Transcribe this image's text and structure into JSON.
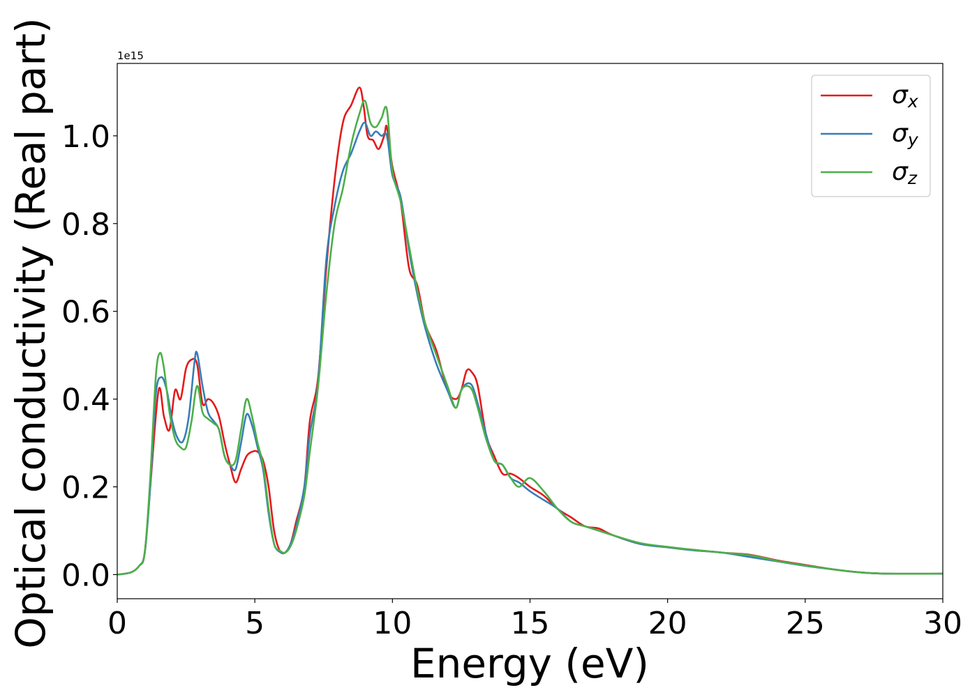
{
  "chart_data": {
    "type": "line",
    "title": "",
    "xlabel": "Energy (eV)",
    "ylabel": "Optical conductivity (Real part)",
    "offset_text": "1e15",
    "xlim": [
      0,
      30
    ],
    "ylim": [
      -0.055,
      1.165
    ],
    "y_scale_factor": 1000000000000000.0,
    "xticks": [
      0,
      5,
      10,
      15,
      20,
      25,
      30
    ],
    "xtick_labels": [
      "0",
      "5",
      "10",
      "15",
      "20",
      "25",
      "30"
    ],
    "yticks": [
      0.0,
      0.2,
      0.4,
      0.6,
      0.8,
      1.0
    ],
    "ytick_labels": [
      "0.0",
      "0.2",
      "0.4",
      "0.6",
      "0.8",
      "1.0"
    ],
    "grid": false,
    "legend_position": "top-right",
    "series": [
      {
        "name": "σx",
        "symbol": "σ",
        "subscript": "x",
        "color": "#e41a1c",
        "x": [
          0,
          0.5,
          0.8,
          1.0,
          1.2,
          1.5,
          1.7,
          1.9,
          2.1,
          2.3,
          2.5,
          2.7,
          2.9,
          3.1,
          3.3,
          3.5,
          3.7,
          3.9,
          4.1,
          4.3,
          4.5,
          4.7,
          4.9,
          5.1,
          5.3,
          5.5,
          5.7,
          5.9,
          6.1,
          6.3,
          6.5,
          6.8,
          7.0,
          7.3,
          7.6,
          7.9,
          8.2,
          8.5,
          8.8,
          8.95,
          9.1,
          9.3,
          9.5,
          9.7,
          9.8,
          10.0,
          10.3,
          10.6,
          10.9,
          11.2,
          11.6,
          12.0,
          12.3,
          12.5,
          12.7,
          12.9,
          13.1,
          13.4,
          13.7,
          14.0,
          14.3,
          14.6,
          15.0,
          15.5,
          16.0,
          16.5,
          17.0,
          17.5,
          18.0,
          19.0,
          20.0,
          21.0,
          22.0,
          23.0,
          24.0,
          25.0,
          26.0,
          27.0,
          28.0,
          30.0
        ],
        "y": [
          0,
          0.005,
          0.02,
          0.05,
          0.2,
          0.42,
          0.36,
          0.33,
          0.42,
          0.4,
          0.47,
          0.49,
          0.48,
          0.39,
          0.4,
          0.39,
          0.36,
          0.3,
          0.25,
          0.21,
          0.24,
          0.27,
          0.28,
          0.28,
          0.26,
          0.2,
          0.1,
          0.055,
          0.05,
          0.07,
          0.12,
          0.2,
          0.35,
          0.45,
          0.7,
          0.9,
          1.03,
          1.07,
          1.11,
          1.07,
          1.0,
          0.99,
          0.97,
          1.0,
          1.02,
          0.93,
          0.85,
          0.7,
          0.66,
          0.57,
          0.51,
          0.42,
          0.4,
          0.42,
          0.465,
          0.46,
          0.43,
          0.32,
          0.27,
          0.23,
          0.23,
          0.22,
          0.2,
          0.18,
          0.15,
          0.13,
          0.11,
          0.105,
          0.09,
          0.07,
          0.063,
          0.056,
          0.05,
          0.045,
          0.032,
          0.022,
          0.012,
          0.005,
          0.002,
          0.002
        ]
      },
      {
        "name": "σy",
        "symbol": "σ",
        "subscript": "y",
        "color": "#377eb8",
        "x": [
          0,
          0.5,
          0.8,
          1.0,
          1.2,
          1.4,
          1.6,
          1.8,
          2.0,
          2.2,
          2.4,
          2.6,
          2.8,
          2.9,
          3.1,
          3.3,
          3.5,
          3.7,
          3.9,
          4.1,
          4.3,
          4.5,
          4.7,
          4.9,
          5.1,
          5.3,
          5.5,
          5.7,
          5.9,
          6.1,
          6.3,
          6.5,
          6.8,
          7.0,
          7.3,
          7.6,
          7.9,
          8.2,
          8.5,
          8.8,
          9.0,
          9.2,
          9.4,
          9.6,
          9.8,
          10.0,
          10.3,
          10.6,
          10.9,
          11.2,
          11.6,
          12.0,
          12.3,
          12.5,
          12.7,
          12.9,
          13.1,
          13.4,
          13.7,
          14.0,
          14.3,
          14.6,
          15.0,
          15.5,
          16.0,
          16.5,
          17.0,
          17.5,
          18.0,
          19.0,
          20.0,
          21.0,
          22.0,
          23.0,
          24.0,
          25.0,
          26.0,
          27.0,
          28.0,
          30.0
        ],
        "y": [
          0,
          0.005,
          0.02,
          0.05,
          0.2,
          0.41,
          0.45,
          0.42,
          0.35,
          0.31,
          0.305,
          0.36,
          0.48,
          0.505,
          0.43,
          0.37,
          0.35,
          0.33,
          0.27,
          0.25,
          0.24,
          0.3,
          0.365,
          0.34,
          0.29,
          0.24,
          0.14,
          0.07,
          0.052,
          0.05,
          0.07,
          0.11,
          0.2,
          0.32,
          0.44,
          0.72,
          0.84,
          0.92,
          0.96,
          1.01,
          1.03,
          1.0,
          1.01,
          1.0,
          1.0,
          0.91,
          0.86,
          0.74,
          0.64,
          0.56,
          0.48,
          0.42,
          0.38,
          0.42,
          0.435,
          0.43,
          0.39,
          0.32,
          0.26,
          0.25,
          0.22,
          0.21,
          0.19,
          0.17,
          0.15,
          0.12,
          0.11,
          0.1,
          0.09,
          0.07,
          0.062,
          0.055,
          0.05,
          0.04,
          0.03,
          0.02,
          0.012,
          0.005,
          0.002,
          0.002
        ]
      },
      {
        "name": "σz",
        "symbol": "σ",
        "subscript": "z",
        "color": "#4daf4a",
        "x": [
          0,
          0.5,
          0.8,
          1.0,
          1.2,
          1.4,
          1.55,
          1.7,
          1.9,
          2.1,
          2.3,
          2.5,
          2.7,
          2.9,
          3.1,
          3.3,
          3.5,
          3.7,
          3.9,
          4.1,
          4.3,
          4.5,
          4.7,
          4.9,
          5.1,
          5.3,
          5.5,
          5.7,
          5.9,
          6.1,
          6.3,
          6.5,
          6.8,
          7.0,
          7.3,
          7.6,
          7.9,
          8.2,
          8.5,
          8.8,
          9.0,
          9.2,
          9.4,
          9.6,
          9.8,
          10.0,
          10.3,
          10.6,
          10.9,
          11.2,
          11.6,
          12.0,
          12.3,
          12.5,
          12.7,
          12.9,
          13.1,
          13.4,
          13.7,
          14.0,
          14.3,
          14.6,
          15.0,
          15.5,
          16.0,
          16.5,
          17.0,
          17.5,
          18.0,
          19.0,
          20.0,
          21.0,
          22.0,
          23.0,
          24.0,
          25.0,
          26.0,
          27.0,
          28.0,
          30.0
        ],
        "y": [
          0,
          0.005,
          0.02,
          0.05,
          0.22,
          0.45,
          0.505,
          0.47,
          0.37,
          0.31,
          0.29,
          0.29,
          0.35,
          0.43,
          0.37,
          0.355,
          0.345,
          0.33,
          0.27,
          0.25,
          0.26,
          0.33,
          0.4,
          0.36,
          0.3,
          0.25,
          0.15,
          0.07,
          0.055,
          0.05,
          0.065,
          0.1,
          0.18,
          0.28,
          0.43,
          0.64,
          0.8,
          0.88,
          0.98,
          1.05,
          1.08,
          1.03,
          1.02,
          1.04,
          1.06,
          0.92,
          0.85,
          0.75,
          0.65,
          0.57,
          0.5,
          0.43,
          0.38,
          0.42,
          0.43,
          0.42,
          0.38,
          0.31,
          0.26,
          0.25,
          0.22,
          0.2,
          0.22,
          0.19,
          0.15,
          0.12,
          0.11,
          0.1,
          0.09,
          0.072,
          0.063,
          0.056,
          0.05,
          0.044,
          0.031,
          0.021,
          0.012,
          0.005,
          0.002,
          0.002
        ]
      }
    ]
  }
}
